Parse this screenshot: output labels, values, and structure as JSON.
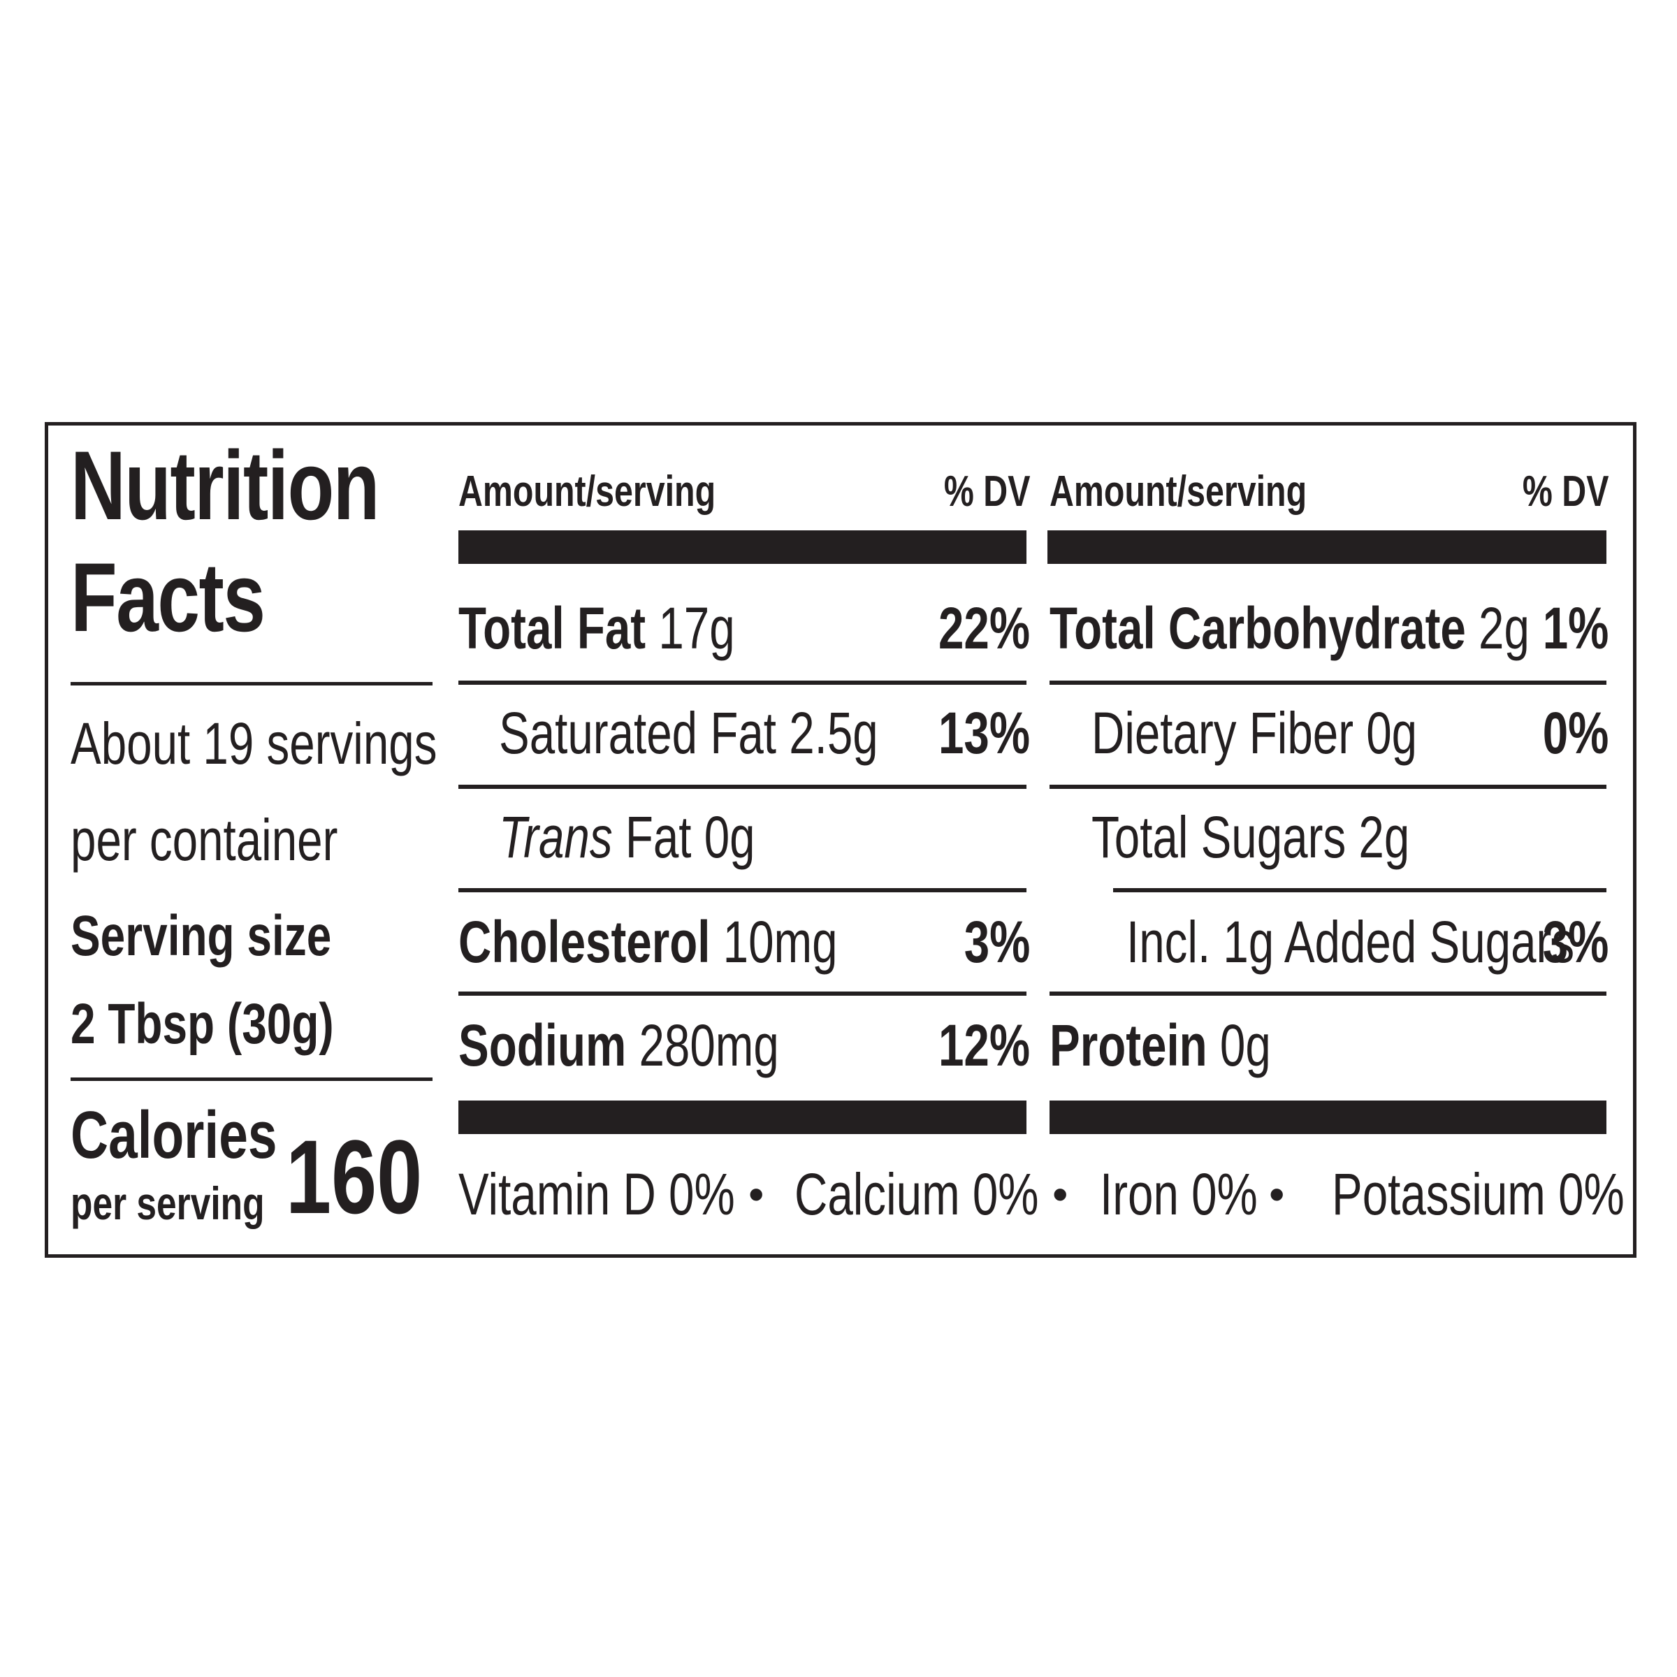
{
  "panel": {
    "title_line1": "Nutrition",
    "title_line2": "Facts",
    "servings_line1": "About 19 servings",
    "servings_line2": "per container",
    "serving_size_label": "Serving size",
    "serving_size_value": "2 Tbsp (30g)",
    "calories_label": "Calories",
    "calories_sub": "per serving",
    "calories_value": "160"
  },
  "left_table": {
    "header_amount": "Amount/serving",
    "header_dv": "% DV",
    "rows": [
      {
        "name": "Total Fat",
        "amount": "17g",
        "dv": "22%"
      },
      {
        "name": "Saturated Fat",
        "amount": "2.5g",
        "dv": "13%"
      },
      {
        "name": "Trans",
        "name_suffix": "Fat",
        "amount": "0g",
        "dv": ""
      },
      {
        "name": "Cholesterol",
        "amount": "10mg",
        "dv": "3%"
      },
      {
        "name": "Sodium",
        "amount": "280mg",
        "dv": "12%"
      }
    ]
  },
  "right_table": {
    "header_amount": "Amount/serving",
    "header_dv": "% DV",
    "rows": [
      {
        "name": "Total Carbohydrate",
        "amount": "2g",
        "dv": "1%"
      },
      {
        "name": "Dietary Fiber",
        "amount": "0g",
        "dv": "0%"
      },
      {
        "name": "Total Sugars",
        "amount": "2g",
        "dv": ""
      },
      {
        "name": "Incl. 1g Added Sugars",
        "amount": "",
        "dv": "3%"
      },
      {
        "name": "Protein",
        "amount": "0g",
        "dv": ""
      }
    ]
  },
  "footer": {
    "items": [
      "Vitamin D 0%",
      "Calcium 0%",
      "Iron 0%",
      "Potassium 0%"
    ],
    "separator": "•"
  },
  "colors": {
    "ink": "#231f20",
    "background": "#ffffff"
  }
}
